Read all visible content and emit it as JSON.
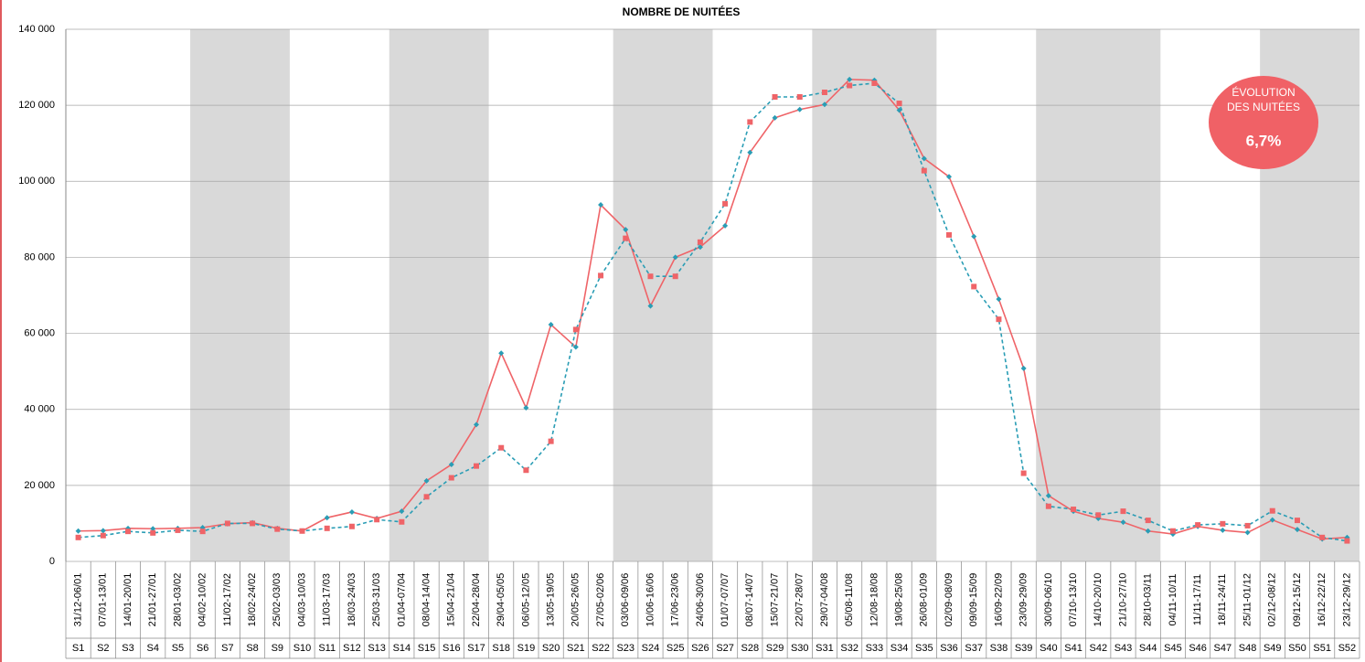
{
  "chart_data": {
    "type": "line",
    "title": "NOMBRE DE NUITÉES",
    "categories": [
      "31/12-06/01",
      "07/01-13/01",
      "14/01-20/01",
      "21/01-27/01",
      "28/01-03/02",
      "04/02-10/02",
      "11/02-17/02",
      "18/02-24/02",
      "25/02-03/03",
      "04/03-10/03",
      "11/03-17/03",
      "18/03-24/03",
      "25/03-31/03",
      "01/04-07/04",
      "08/04-14/04",
      "15/04-21/04",
      "22/04-28/04",
      "29/04-05/05",
      "06/05-12/05",
      "13/05-19/05",
      "20/05-26/05",
      "27/05-02/06",
      "03/06-09/06",
      "10/06-16/06",
      "17/06-23/06",
      "24/06-30/06",
      "01/07-07/07",
      "08/07-14/07",
      "15/07-21/07",
      "22/07-28/07",
      "29/07-04/08",
      "05/08-11/08",
      "12/08-18/08",
      "19/08-25/08",
      "26/08-01/09",
      "02/09-08/09",
      "09/09-15/09",
      "16/09-22/09",
      "23/09-29/09",
      "30/09-06/10",
      "07/10-13/10",
      "14/10-20/10",
      "21/10-27/10",
      "28/10-03/11",
      "04/11-10/11",
      "11/11-17/11",
      "18/11-24/11",
      "25/11-01/12",
      "02/12-08/12",
      "09/12-15/12",
      "16/12-22/12",
      "23/12-29/12"
    ],
    "week_labels": [
      "S1",
      "S2",
      "S3",
      "S4",
      "S5",
      "S6",
      "S7",
      "S8",
      "S9",
      "S10",
      "S11",
      "S12",
      "S13",
      "S14",
      "S15",
      "S16",
      "S17",
      "S18",
      "S19",
      "S20",
      "S21",
      "S22",
      "S23",
      "S24",
      "S25",
      "S26",
      "S27",
      "S28",
      "S29",
      "S30",
      "S31",
      "S32",
      "S33",
      "S34",
      "S35",
      "S36",
      "S37",
      "S38",
      "S39",
      "S40",
      "S41",
      "S42",
      "S43",
      "S44",
      "S45",
      "S46",
      "S47",
      "S48",
      "S49",
      "S50",
      "S51",
      "S52"
    ],
    "series": [
      {
        "color": "#ef6468",
        "line_style": "solid",
        "marker": "diamond",
        "marker_color": "#2a9db5",
        "values": [
          8000,
          8100,
          8700,
          8600,
          8700,
          8900,
          9900,
          10200,
          8700,
          8000,
          11500,
          13000,
          11300,
          13200,
          21200,
          25500,
          36000,
          54800,
          40400,
          62300,
          56400,
          93800,
          87300,
          67200,
          80000,
          82700,
          88300,
          107600,
          116700,
          118900,
          120200,
          126800,
          126600,
          118700,
          106000,
          101200,
          85500,
          69000,
          50800,
          17300,
          13200,
          11300,
          10300,
          8000,
          7200,
          9200,
          8200,
          7600,
          10900,
          8400,
          5900,
          6300
        ]
      },
      {
        "color": "#2a9db5",
        "line_style": "dashed",
        "marker": "square",
        "marker_color": "#ef6468",
        "values": [
          6300,
          6800,
          7900,
          7500,
          8200,
          7900,
          10000,
          10000,
          8500,
          8000,
          8700,
          9200,
          11000,
          10400,
          17000,
          22000,
          25100,
          29900,
          24000,
          31600,
          61000,
          75200,
          85000,
          75000,
          75000,
          84000,
          94100,
          115600,
          122200,
          122200,
          123400,
          125200,
          125800,
          120500,
          102800,
          85900,
          72300,
          63700,
          23200,
          14500,
          13700,
          12200,
          13200,
          10800,
          8000,
          9600,
          9900,
          9400,
          13300,
          10800,
          6300,
          5400
        ]
      }
    ],
    "ylim": [
      0,
      140000
    ],
    "yticks": [
      {
        "value": 0,
        "label": "0"
      },
      {
        "value": 20000,
        "label": "20 000"
      },
      {
        "value": 40000,
        "label": "40 000"
      },
      {
        "value": 60000,
        "label": "60 000"
      },
      {
        "value": 80000,
        "label": "80 000"
      },
      {
        "value": 100000,
        "label": "100 000"
      },
      {
        "value": 120000,
        "label": "120 000"
      },
      {
        "value": 140000,
        "label": "140 000"
      }
    ],
    "grid": true,
    "shaded_bands": [
      [
        5,
        8
      ],
      [
        13,
        16
      ],
      [
        22,
        25
      ],
      [
        30,
        34
      ],
      [
        39,
        43
      ],
      [
        48,
        51
      ]
    ],
    "shade_color": "#d9d9d9",
    "annotation": {
      "lines": [
        "ÉVOLUTION",
        "DES NUITÉES"
      ],
      "value": "6,7%",
      "color": "#f06166"
    }
  }
}
